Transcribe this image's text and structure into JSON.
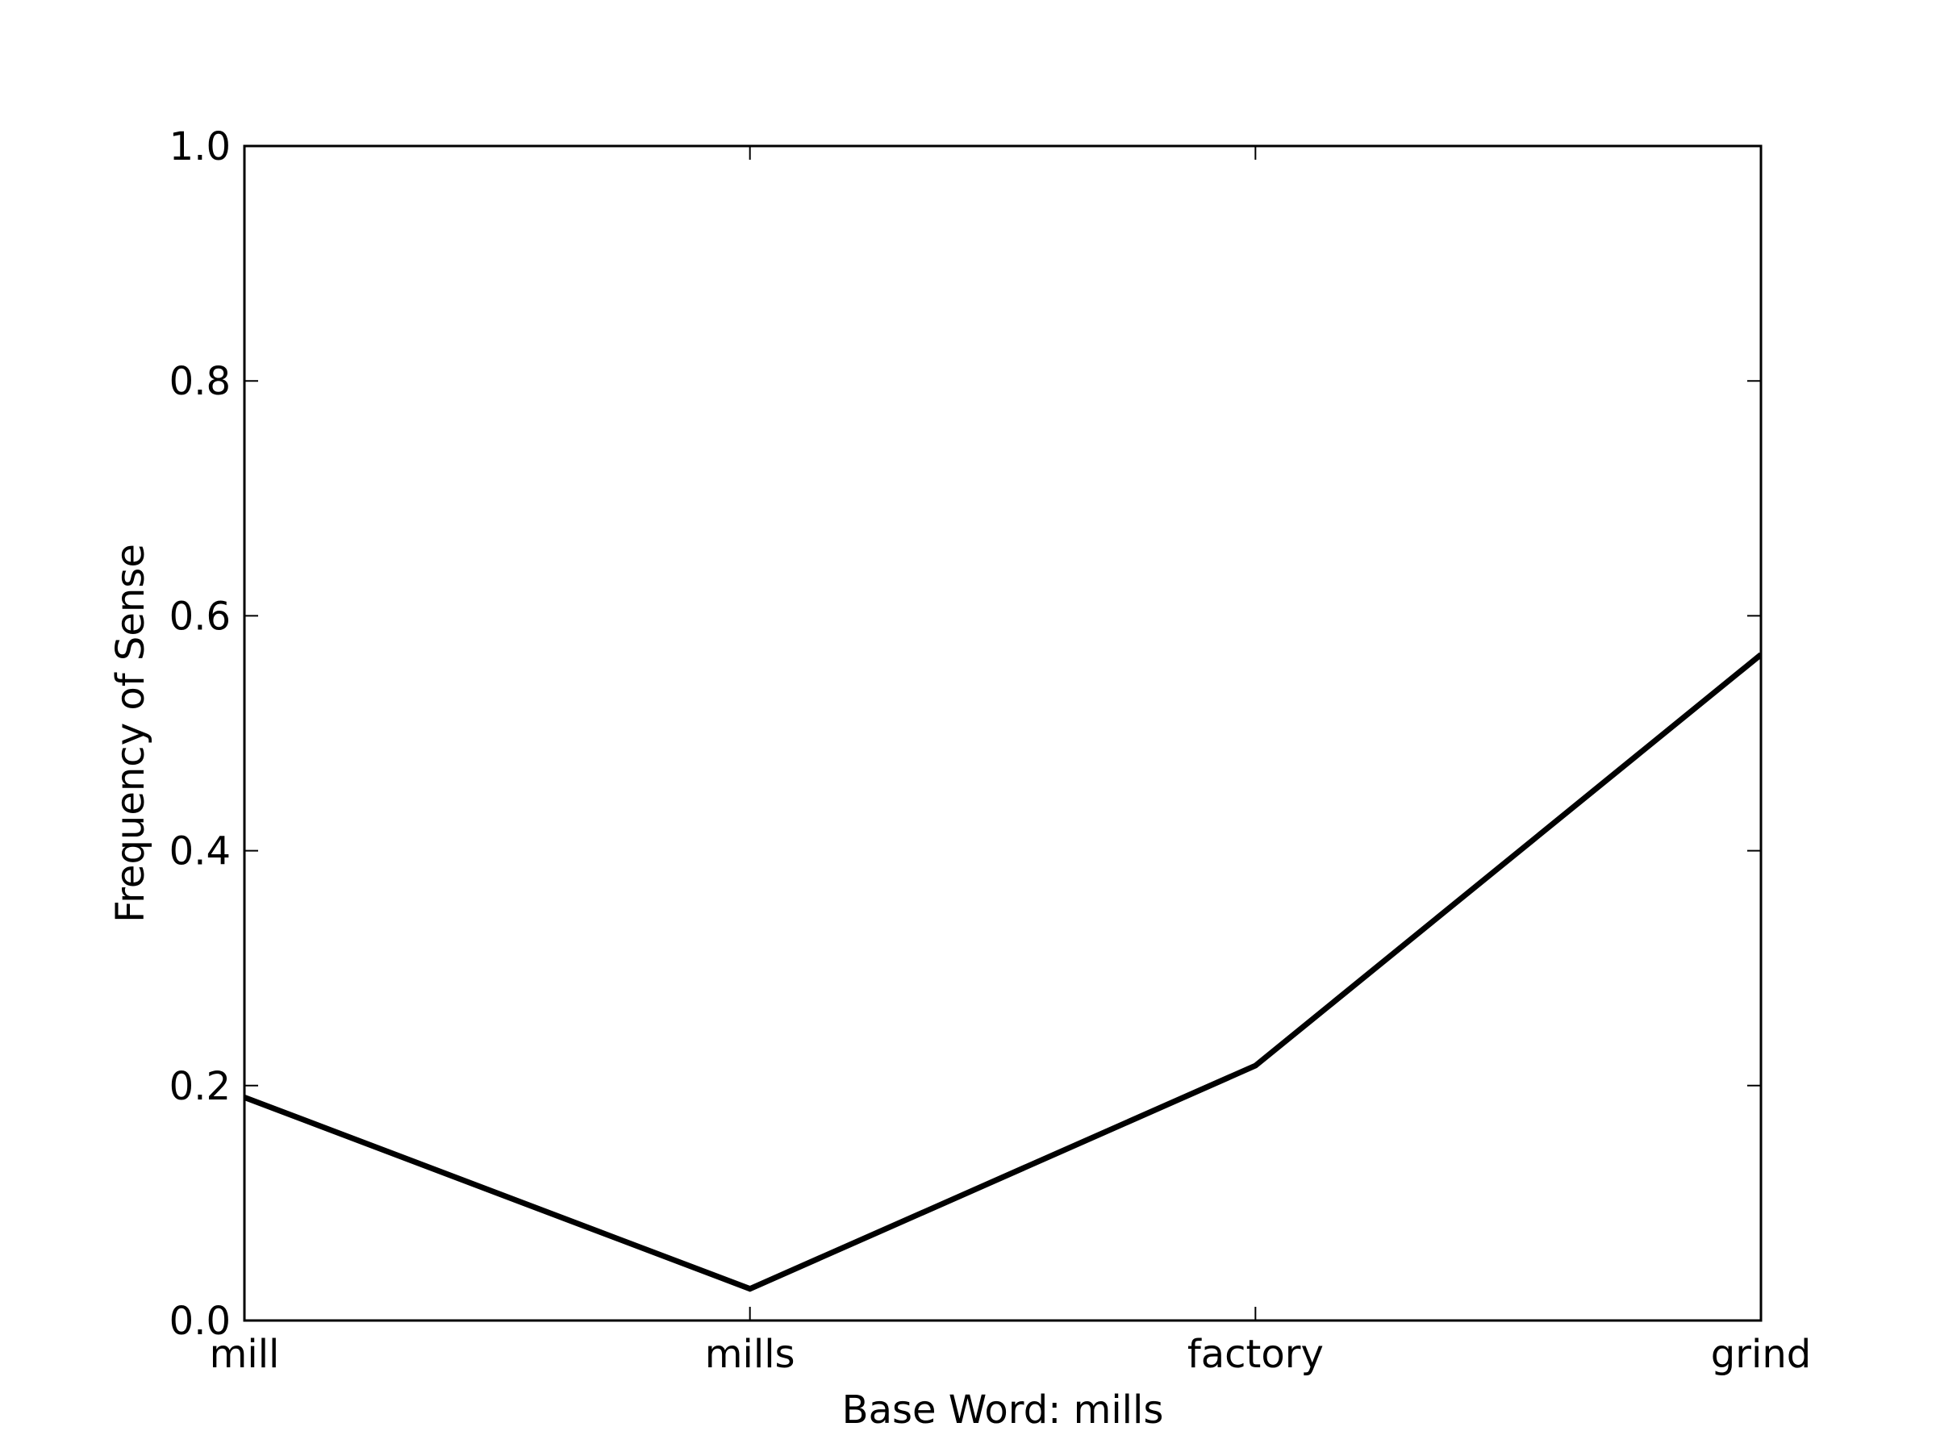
{
  "chart_data": {
    "type": "line",
    "categories": [
      "mill",
      "mills",
      "factory",
      "grind"
    ],
    "series": [
      {
        "values": [
          0.19,
          0.027,
          0.217,
          0.567
        ],
        "color": "#000000"
      }
    ],
    "xlabel": "Base Word: mills",
    "ylabel": "Frequency of Sense",
    "ylim": [
      0.0,
      1.0
    ],
    "yticks": [
      "0.0",
      "0.2",
      "0.4",
      "0.6",
      "0.8",
      "1.0"
    ],
    "grid": false,
    "legend": "none"
  }
}
